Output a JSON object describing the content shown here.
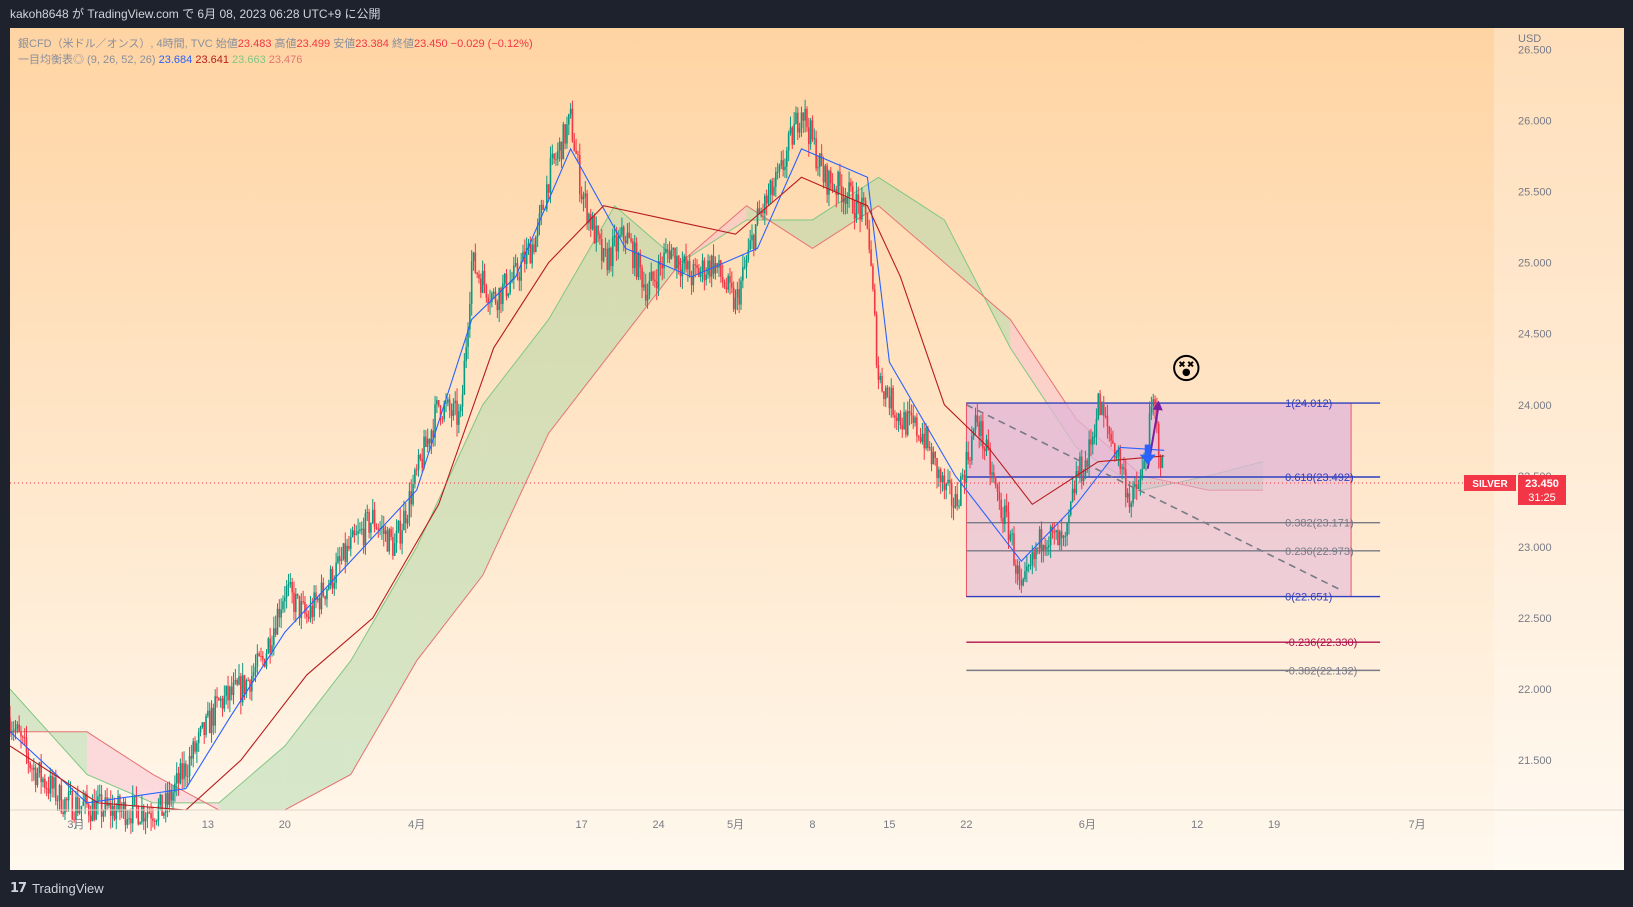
{
  "header": {
    "published_text": "kakoh8648 が TradingView.com で 6月 08, 2023 06:28 UTC+9 に公開"
  },
  "footer": {
    "brand": "TradingView"
  },
  "legend": {
    "symbol_line": "銀CFD（米ドル／オンス）, 4時間, TVC",
    "open_label": "始値",
    "open": "23.483",
    "high_label": "高値",
    "high": "23.499",
    "low_label": "安値",
    "low": "23.384",
    "close_label": "終値",
    "close": "23.450",
    "change": "−0.029 (−0.12%)",
    "ichimoku_label": "一目均衡表◎ (9, 26, 52, 26)",
    "ichi_v1": "23.684",
    "ichi_v2": "23.641",
    "ichi_v3": "23.663",
    "ichi_v4": "23.476"
  },
  "colors": {
    "bg_top": "#ffd4a3",
    "bg_bottom": "#fff8ee",
    "up": "#089981",
    "down": "#f23645",
    "tenkan": "#2962ff",
    "kijun": "#b71c1c",
    "kumo_bull": "#a5d6a7",
    "kumo_bear": "#f8bbd0",
    "fib_line": "#2f3fbf",
    "fib_box": "#e1b4d8"
  },
  "price_badge": {
    "symbol": "SILVER",
    "price": "23.450",
    "countdown": "31:25"
  },
  "chart_data": {
    "type": "candlestick",
    "title": "",
    "currency": "USD",
    "y_ticks": [
      21.5,
      22.0,
      22.5,
      23.0,
      23.5,
      24.0,
      24.5,
      25.0,
      25.5,
      26.0,
      26.5
    ],
    "y_tick_labels": [
      "21.500",
      "22.000",
      "22.500",
      "23.000",
      "23.500",
      "24.000",
      "24.500",
      "25.000",
      "25.500",
      "26.000",
      "26.500"
    ],
    "ylim": [
      21.15,
      26.65
    ],
    "x_tick_labels": [
      "3月",
      "13",
      "20",
      "4月",
      "17",
      "24",
      "5月",
      "8",
      "15",
      "22",
      "6月",
      "12",
      "19",
      "7月"
    ],
    "x_tick_days": [
      1,
      13,
      20,
      32,
      47,
      54,
      61,
      68,
      75,
      82,
      93,
      103,
      110,
      123
    ],
    "x_range_days": [
      -5,
      130
    ],
    "price_path": [
      {
        "d": -5,
        "p": 21.8
      },
      {
        "d": -3,
        "p": 21.45
      },
      {
        "d": 0,
        "p": 21.2
      },
      {
        "d": 4,
        "p": 21.15
      },
      {
        "d": 9,
        "p": 21.15
      },
      {
        "d": 12,
        "p": 21.6
      },
      {
        "d": 14,
        "p": 21.9
      },
      {
        "d": 16,
        "p": 22.0
      },
      {
        "d": 18,
        "p": 22.2
      },
      {
        "d": 20,
        "p": 22.7
      },
      {
        "d": 22,
        "p": 22.5
      },
      {
        "d": 24,
        "p": 22.75
      },
      {
        "d": 26,
        "p": 23.0
      },
      {
        "d": 28,
        "p": 23.2
      },
      {
        "d": 30,
        "p": 23.0
      },
      {
        "d": 32,
        "p": 23.5
      },
      {
        "d": 34,
        "p": 24.0
      },
      {
        "d": 36,
        "p": 23.9
      },
      {
        "d": 37,
        "p": 25.0
      },
      {
        "d": 39,
        "p": 24.75
      },
      {
        "d": 41,
        "p": 24.9
      },
      {
        "d": 43,
        "p": 25.2
      },
      {
        "d": 44,
        "p": 25.6
      },
      {
        "d": 46,
        "p": 26.0
      },
      {
        "d": 47,
        "p": 25.5
      },
      {
        "d": 49,
        "p": 25.0
      },
      {
        "d": 51,
        "p": 25.2
      },
      {
        "d": 53,
        "p": 24.8
      },
      {
        "d": 55,
        "p": 25.1
      },
      {
        "d": 57,
        "p": 24.9
      },
      {
        "d": 59,
        "p": 25.0
      },
      {
        "d": 61,
        "p": 24.7
      },
      {
        "d": 63,
        "p": 25.3
      },
      {
        "d": 65,
        "p": 25.6
      },
      {
        "d": 67,
        "p": 26.1
      },
      {
        "d": 69,
        "p": 25.6
      },
      {
        "d": 71,
        "p": 25.5
      },
      {
        "d": 73,
        "p": 25.3
      },
      {
        "d": 74,
        "p": 24.2
      },
      {
        "d": 76,
        "p": 23.9
      },
      {
        "d": 78,
        "p": 23.8
      },
      {
        "d": 80,
        "p": 23.4
      },
      {
        "d": 81,
        "p": 23.3
      },
      {
        "d": 83,
        "p": 23.9
      },
      {
        "d": 85,
        "p": 23.3
      },
      {
        "d": 86,
        "p": 23.1
      },
      {
        "d": 87,
        "p": 22.65
      },
      {
        "d": 89,
        "p": 23.1
      },
      {
        "d": 91,
        "p": 23.0
      },
      {
        "d": 92,
        "p": 23.5
      },
      {
        "d": 93,
        "p": 23.6
      },
      {
        "d": 94,
        "p": 24.0
      },
      {
        "d": 96,
        "p": 23.6
      },
      {
        "d": 97,
        "p": 23.3
      },
      {
        "d": 98,
        "p": 23.5
      },
      {
        "d": 99,
        "p": 24.0
      },
      {
        "d": 100,
        "p": 23.45
      }
    ],
    "tenkan_sen": [
      {
        "d": -5,
        "p": 21.7
      },
      {
        "d": 2,
        "p": 21.2
      },
      {
        "d": 11,
        "p": 21.3
      },
      {
        "d": 15,
        "p": 21.8
      },
      {
        "d": 20,
        "p": 22.4
      },
      {
        "d": 26,
        "p": 22.9
      },
      {
        "d": 32,
        "p": 23.4
      },
      {
        "d": 37,
        "p": 24.6
      },
      {
        "d": 41,
        "p": 24.9
      },
      {
        "d": 46,
        "p": 25.8
      },
      {
        "d": 51,
        "p": 25.1
      },
      {
        "d": 57,
        "p": 24.9
      },
      {
        "d": 63,
        "p": 25.1
      },
      {
        "d": 67,
        "p": 25.8
      },
      {
        "d": 73,
        "p": 25.6
      },
      {
        "d": 75,
        "p": 24.3
      },
      {
        "d": 81,
        "p": 23.5
      },
      {
        "d": 87,
        "p": 22.9
      },
      {
        "d": 92,
        "p": 23.3
      },
      {
        "d": 96,
        "p": 23.7
      },
      {
        "d": 100,
        "p": 23.68
      }
    ],
    "kijun_sen": [
      {
        "d": -5,
        "p": 21.6
      },
      {
        "d": 3,
        "p": 21.2
      },
      {
        "d": 11,
        "p": 21.15
      },
      {
        "d": 16,
        "p": 21.5
      },
      {
        "d": 22,
        "p": 22.1
      },
      {
        "d": 28,
        "p": 22.5
      },
      {
        "d": 34,
        "p": 23.3
      },
      {
        "d": 39,
        "p": 24.4
      },
      {
        "d": 44,
        "p": 25.0
      },
      {
        "d": 49,
        "p": 25.4
      },
      {
        "d": 55,
        "p": 25.3
      },
      {
        "d": 61,
        "p": 25.2
      },
      {
        "d": 67,
        "p": 25.6
      },
      {
        "d": 73,
        "p": 25.4
      },
      {
        "d": 76,
        "p": 24.9
      },
      {
        "d": 80,
        "p": 24.0
      },
      {
        "d": 84,
        "p": 23.7
      },
      {
        "d": 88,
        "p": 23.3
      },
      {
        "d": 94,
        "p": 23.6
      },
      {
        "d": 100,
        "p": 23.64
      }
    ],
    "kumo": [
      {
        "d": -5,
        "a": 22.0,
        "b": 21.7
      },
      {
        "d": 2,
        "a": 21.4,
        "b": 21.7
      },
      {
        "d": 8,
        "a": 21.2,
        "b": 21.4
      },
      {
        "d": 14,
        "a": 21.2,
        "b": 21.15
      },
      {
        "d": 20,
        "a": 21.6,
        "b": 21.15
      },
      {
        "d": 26,
        "a": 22.2,
        "b": 21.4
      },
      {
        "d": 32,
        "a": 23.0,
        "b": 22.2
      },
      {
        "d": 38,
        "a": 24.0,
        "b": 22.8
      },
      {
        "d": 44,
        "a": 24.6,
        "b": 23.8
      },
      {
        "d": 50,
        "a": 25.4,
        "b": 24.4
      },
      {
        "d": 56,
        "a": 25.0,
        "b": 25.0
      },
      {
        "d": 62,
        "a": 25.3,
        "b": 25.4
      },
      {
        "d": 68,
        "a": 25.3,
        "b": 25.1
      },
      {
        "d": 74,
        "a": 25.6,
        "b": 25.4
      },
      {
        "d": 80,
        "a": 25.3,
        "b": 25.0
      },
      {
        "d": 86,
        "a": 24.4,
        "b": 24.6
      },
      {
        "d": 92,
        "a": 23.7,
        "b": 23.9
      },
      {
        "d": 98,
        "a": 23.4,
        "b": 23.5
      },
      {
        "d": 104,
        "a": 23.5,
        "b": 23.4
      },
      {
        "d": 109,
        "a": 23.6,
        "b": 23.4
      }
    ],
    "fibonacci": {
      "start_day": 82,
      "end_day": 117,
      "label_day": 111,
      "levels": [
        {
          "ratio": "1",
          "price": 24.012,
          "label": "1(24.012)",
          "color": "#2f3fbf"
        },
        {
          "ratio": "0.618",
          "price": 23.492,
          "label": "0.618(23.492)",
          "color": "#2f3fbf"
        },
        {
          "ratio": "0.382",
          "price": 23.171,
          "label": "0.382(23.171)",
          "color": "#787b86"
        },
        {
          "ratio": "0.236",
          "price": 22.973,
          "label": "0.236(22.973)",
          "color": "#787b86"
        },
        {
          "ratio": "0",
          "price": 22.651,
          "label": "0(22.651)",
          "color": "#2f3fbf"
        },
        {
          "ratio": "-0.236",
          "price": 22.33,
          "label": "-0.236(22.330)",
          "color": "#b0124e"
        },
        {
          "ratio": "-0.382",
          "price": 22.132,
          "label": "-0.382(22.132)",
          "color": "#787b86"
        }
      ]
    },
    "trendline": {
      "from": {
        "d": 82,
        "p": 24.0
      },
      "to": {
        "d": 116,
        "p": 22.7
      }
    },
    "current_price": 23.45,
    "annotations": [
      {
        "type": "emoji",
        "symbol": "😵",
        "d": 102,
        "p": 24.25
      }
    ]
  }
}
